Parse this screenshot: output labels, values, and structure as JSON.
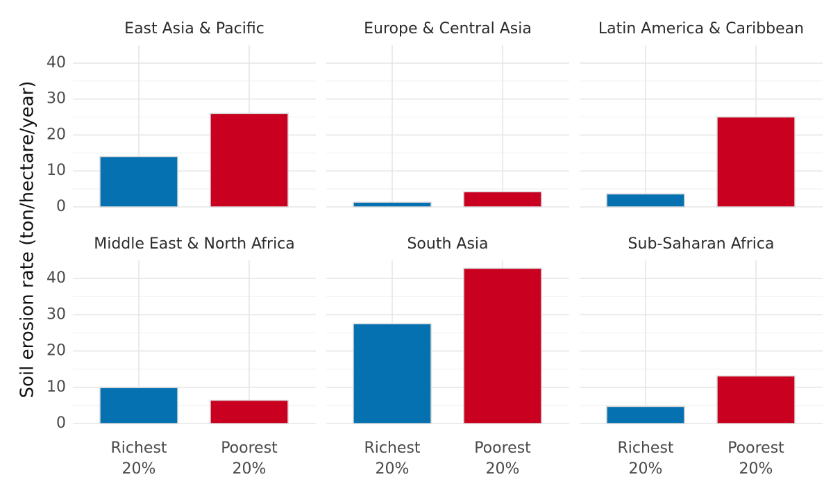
{
  "chart_data": {
    "type": "bar",
    "ylabel": "Soil erosion rate (ton/hectare/year)",
    "xlabel": "",
    "ylim": [
      0,
      45
    ],
    "y_ticks": [
      0,
      10,
      20,
      30,
      40
    ],
    "categories": [
      "Richest 20%",
      "Poorest 20%"
    ],
    "category_lines": [
      [
        "Richest",
        "20%"
      ],
      [
        "Poorest",
        "20%"
      ]
    ],
    "colors": {
      "Richest 20%": "#0571b0",
      "Poorest 20%": "#ca0020"
    },
    "facets": [
      {
        "title": "East Asia & Pacific",
        "values": [
          14,
          26
        ]
      },
      {
        "title": "Europe & Central Asia",
        "values": [
          1.3,
          4.2
        ]
      },
      {
        "title": "Latin America & Caribbean",
        "values": [
          3.6,
          25
        ]
      },
      {
        "title": "Middle East & North Africa",
        "values": [
          9.9,
          6.4
        ]
      },
      {
        "title": "South Asia",
        "values": [
          27.5,
          42.8
        ]
      },
      {
        "title": "Sub-Saharan Africa",
        "values": [
          4.7,
          13.1
        ]
      }
    ]
  }
}
